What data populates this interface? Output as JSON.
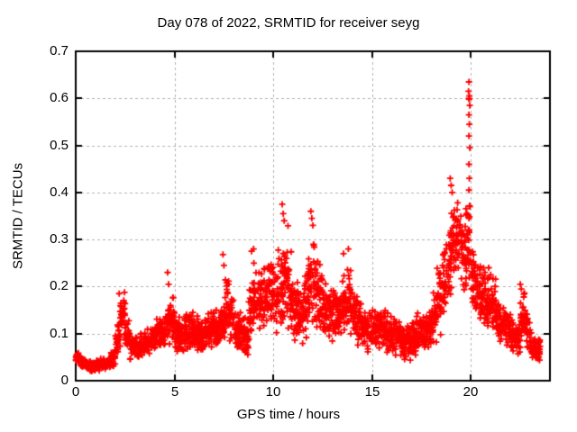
{
  "chart_data": {
    "type": "scatter",
    "title": "Day 078 of 2022, SRMTID for receiver seyg",
    "xlabel": "GPS time / hours",
    "ylabel": "SRMTID / TECUs",
    "xlim": [
      0,
      24
    ],
    "ylim": [
      0,
      0.7
    ],
    "xticks": [
      {
        "v": 0,
        "label": "0"
      },
      {
        "v": 5,
        "label": "5"
      },
      {
        "v": 10,
        "label": "10"
      },
      {
        "v": 15,
        "label": "15"
      },
      {
        "v": 20,
        "label": "20"
      }
    ],
    "yticks": [
      {
        "v": 0.0,
        "label": "0"
      },
      {
        "v": 0.1,
        "label": "0.1"
      },
      {
        "v": 0.2,
        "label": "0.2"
      },
      {
        "v": 0.3,
        "label": "0.3"
      },
      {
        "v": 0.4,
        "label": "0.4"
      },
      {
        "v": 0.5,
        "label": "0.5"
      },
      {
        "v": 0.6,
        "label": "0.6"
      },
      {
        "v": 0.7,
        "label": "0.7"
      }
    ],
    "grid": true,
    "legend": "none",
    "marker": "plus",
    "colors": {
      "points": "#ff0000",
      "grid": "#b0b0b0",
      "axis": "#000000",
      "background": "#ffffff",
      "text": "#000000"
    },
    "envelope_bin_hours": 0.25,
    "points_per_bin": 28,
    "envelope": [
      [
        0.0,
        0.035,
        0.06
      ],
      [
        0.25,
        0.022,
        0.05
      ],
      [
        0.5,
        0.018,
        0.042
      ],
      [
        0.75,
        0.018,
        0.04
      ],
      [
        1.0,
        0.02,
        0.045
      ],
      [
        1.25,
        0.022,
        0.048
      ],
      [
        1.5,
        0.025,
        0.05
      ],
      [
        1.75,
        0.03,
        0.065
      ],
      [
        2.0,
        0.055,
        0.12
      ],
      [
        2.25,
        0.09,
        0.19
      ],
      [
        2.5,
        0.06,
        0.13
      ],
      [
        2.75,
        0.04,
        0.095
      ],
      [
        3.0,
        0.045,
        0.095
      ],
      [
        3.25,
        0.05,
        0.105
      ],
      [
        3.5,
        0.055,
        0.11
      ],
      [
        3.75,
        0.06,
        0.12
      ],
      [
        4.0,
        0.065,
        0.135
      ],
      [
        4.25,
        0.07,
        0.145
      ],
      [
        4.5,
        0.07,
        0.16
      ],
      [
        4.75,
        0.075,
        0.185
      ],
      [
        5.0,
        0.06,
        0.14
      ],
      [
        5.25,
        0.055,
        0.13
      ],
      [
        5.5,
        0.06,
        0.15
      ],
      [
        5.75,
        0.065,
        0.155
      ],
      [
        6.0,
        0.06,
        0.14
      ],
      [
        6.25,
        0.055,
        0.135
      ],
      [
        6.5,
        0.06,
        0.145
      ],
      [
        6.75,
        0.065,
        0.155
      ],
      [
        7.0,
        0.07,
        0.16
      ],
      [
        7.25,
        0.075,
        0.18
      ],
      [
        7.5,
        0.085,
        0.23
      ],
      [
        7.75,
        0.08,
        0.19
      ],
      [
        8.0,
        0.06,
        0.16
      ],
      [
        8.25,
        0.055,
        0.15
      ],
      [
        8.5,
        0.05,
        0.145
      ],
      [
        8.75,
        0.075,
        0.23
      ],
      [
        9.0,
        0.095,
        0.26
      ],
      [
        9.25,
        0.095,
        0.235
      ],
      [
        9.5,
        0.1,
        0.25
      ],
      [
        9.75,
        0.11,
        0.265
      ],
      [
        10.0,
        0.1,
        0.255
      ],
      [
        10.25,
        0.1,
        0.285
      ],
      [
        10.5,
        0.115,
        0.33
      ],
      [
        10.75,
        0.095,
        0.29
      ],
      [
        11.0,
        0.08,
        0.235
      ],
      [
        11.25,
        0.065,
        0.2
      ],
      [
        11.5,
        0.08,
        0.235
      ],
      [
        11.75,
        0.095,
        0.29
      ],
      [
        12.0,
        0.1,
        0.31
      ],
      [
        12.25,
        0.095,
        0.25
      ],
      [
        12.5,
        0.085,
        0.215
      ],
      [
        12.75,
        0.08,
        0.2
      ],
      [
        13.0,
        0.08,
        0.215
      ],
      [
        13.25,
        0.08,
        0.2
      ],
      [
        13.5,
        0.085,
        0.235
      ],
      [
        13.75,
        0.09,
        0.25
      ],
      [
        14.0,
        0.08,
        0.195
      ],
      [
        14.25,
        0.07,
        0.175
      ],
      [
        14.5,
        0.065,
        0.16
      ],
      [
        14.75,
        0.06,
        0.15
      ],
      [
        15.0,
        0.06,
        0.155
      ],
      [
        15.25,
        0.065,
        0.165
      ],
      [
        15.5,
        0.06,
        0.155
      ],
      [
        15.75,
        0.055,
        0.15
      ],
      [
        16.0,
        0.05,
        0.14
      ],
      [
        16.25,
        0.045,
        0.13
      ],
      [
        16.5,
        0.04,
        0.12
      ],
      [
        16.75,
        0.04,
        0.12
      ],
      [
        17.0,
        0.05,
        0.135
      ],
      [
        17.25,
        0.055,
        0.155
      ],
      [
        17.5,
        0.05,
        0.14
      ],
      [
        17.75,
        0.06,
        0.16
      ],
      [
        18.0,
        0.075,
        0.195
      ],
      [
        18.25,
        0.095,
        0.25
      ],
      [
        18.5,
        0.115,
        0.29
      ],
      [
        18.75,
        0.145,
        0.33
      ],
      [
        19.0,
        0.17,
        0.4
      ],
      [
        19.25,
        0.19,
        0.42
      ],
      [
        19.5,
        0.17,
        0.35
      ],
      [
        19.75,
        0.19,
        0.39
      ],
      [
        20.0,
        0.14,
        0.3
      ],
      [
        20.25,
        0.12,
        0.26
      ],
      [
        20.5,
        0.115,
        0.245
      ],
      [
        20.75,
        0.1,
        0.225
      ],
      [
        21.0,
        0.095,
        0.22
      ],
      [
        21.25,
        0.08,
        0.18
      ],
      [
        21.5,
        0.075,
        0.16
      ],
      [
        21.75,
        0.065,
        0.15
      ],
      [
        22.0,
        0.06,
        0.14
      ],
      [
        22.25,
        0.055,
        0.13
      ],
      [
        22.5,
        0.07,
        0.195
      ],
      [
        22.75,
        0.055,
        0.16
      ],
      [
        23.0,
        0.04,
        0.12
      ],
      [
        23.25,
        0.035,
        0.09
      ]
    ],
    "peaks": [
      [
        2.2,
        0.185
      ],
      [
        4.65,
        0.23
      ],
      [
        4.7,
        0.205
      ],
      [
        7.45,
        0.268
      ],
      [
        7.5,
        0.245
      ],
      [
        8.9,
        0.275
      ],
      [
        9.0,
        0.28
      ],
      [
        10.45,
        0.375
      ],
      [
        10.5,
        0.355
      ],
      [
        10.55,
        0.34
      ],
      [
        11.9,
        0.36
      ],
      [
        11.95,
        0.345
      ],
      [
        12.0,
        0.33
      ],
      [
        13.55,
        0.27
      ],
      [
        13.8,
        0.28
      ],
      [
        18.95,
        0.43
      ],
      [
        19.0,
        0.415
      ],
      [
        19.05,
        0.4
      ],
      [
        19.9,
        0.635
      ],
      [
        19.88,
        0.615
      ],
      [
        19.92,
        0.605
      ],
      [
        19.9,
        0.6
      ],
      [
        19.91,
        0.598
      ],
      [
        19.94,
        0.585
      ],
      [
        19.9,
        0.565
      ],
      [
        19.92,
        0.545
      ],
      [
        19.9,
        0.52
      ],
      [
        19.94,
        0.495
      ],
      [
        19.9,
        0.46
      ],
      [
        19.92,
        0.43
      ],
      [
        19.9,
        0.405
      ],
      [
        19.94,
        0.37
      ],
      [
        19.9,
        0.345
      ],
      [
        19.92,
        0.315
      ],
      [
        20.9,
        0.24
      ],
      [
        21.0,
        0.225
      ],
      [
        22.5,
        0.205
      ],
      [
        22.55,
        0.195
      ]
    ]
  }
}
